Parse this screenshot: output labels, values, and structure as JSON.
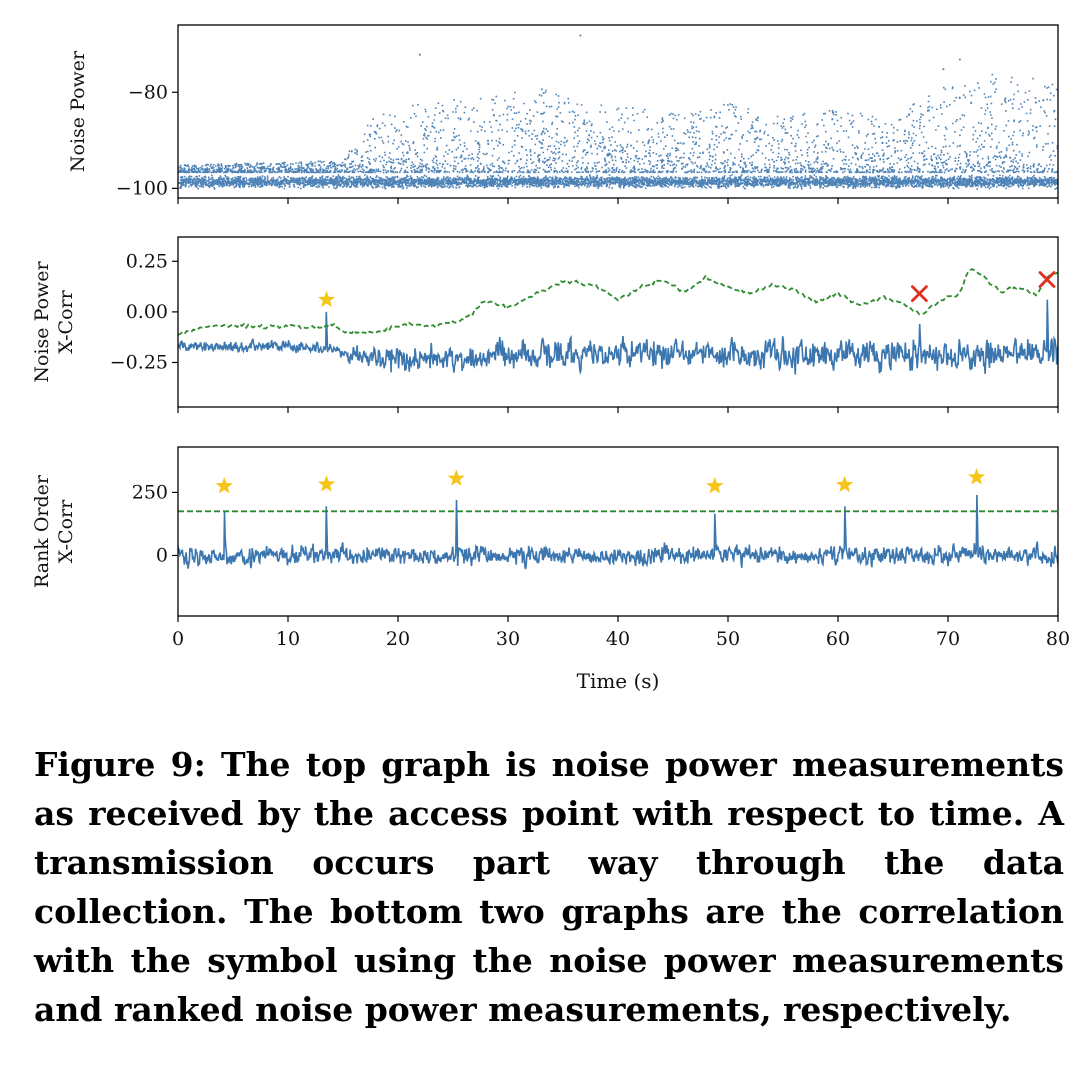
{
  "caption": "Figure 9: The top graph is noise power measurements as received by the access point with respect to time. A transmission occurs part way through the data collection. The bottom two graphs are the correlation with the symbol using the noise power measurements and ranked noise power measurements, respectively.",
  "colors": {
    "primary": "#3b76af",
    "threshold": "#2e8b2e",
    "hit": "#f5c518",
    "miss": "#e03020"
  },
  "chart_data": [
    {
      "type": "scatter",
      "ylabel": "Noise Power",
      "xlim": [
        0,
        80
      ],
      "ylim": [
        -102,
        -66
      ],
      "yticks": [
        -100,
        -80
      ],
      "yticklabels": [
        "−100",
        "−80"
      ],
      "series": [
        {
          "kind": "noise_scatter",
          "baseline": -98.5,
          "envelope": [
            {
              "x": 0,
              "y": -95
            },
            {
              "x": 15,
              "y": -94
            },
            {
              "x": 17,
              "y": -86
            },
            {
              "x": 20,
              "y": -83
            },
            {
              "x": 22,
              "y": -82
            },
            {
              "x": 27,
              "y": -81
            },
            {
              "x": 33,
              "y": -79
            },
            {
              "x": 37,
              "y": -82
            },
            {
              "x": 42,
              "y": -83
            },
            {
              "x": 47,
              "y": -84
            },
            {
              "x": 50,
              "y": -82
            },
            {
              "x": 55,
              "y": -85
            },
            {
              "x": 60,
              "y": -83
            },
            {
              "x": 65,
              "y": -86
            },
            {
              "x": 67,
              "y": -80
            },
            {
              "x": 70,
              "y": -78
            },
            {
              "x": 74,
              "y": -76
            },
            {
              "x": 78,
              "y": -77
            },
            {
              "x": 80,
              "y": -78
            }
          ],
          "outliers": [
            {
              "x": 36.5,
              "y": -68
            },
            {
              "x": 21.9,
              "y": -72
            },
            {
              "x": 71.0,
              "y": -73
            },
            {
              "x": 69.5,
              "y": -75
            }
          ]
        }
      ]
    },
    {
      "type": "line",
      "ylabel": [
        "Noise Power",
        "X-Corr"
      ],
      "xlim": [
        0,
        80
      ],
      "ylim": [
        -0.47,
        0.37
      ],
      "yticks": [
        -0.25,
        0.0,
        0.25
      ],
      "yticklabels": [
        "−0.25",
        "0.00",
        "0.25"
      ],
      "series": [
        {
          "kind": "noisy_line",
          "trend": [
            {
              "x": 0,
              "y": -0.17
            },
            {
              "x": 13,
              "y": -0.17
            },
            {
              "x": 15,
              "y": -0.2
            },
            {
              "x": 20,
              "y": -0.24
            },
            {
              "x": 30,
              "y": -0.22
            },
            {
              "x": 40,
              "y": -0.2
            },
            {
              "x": 50,
              "y": -0.2
            },
            {
              "x": 60,
              "y": -0.21
            },
            {
              "x": 70,
              "y": -0.22
            },
            {
              "x": 80,
              "y": -0.2
            }
          ],
          "amplitude": [
            {
              "x": 0,
              "y": 0.03
            },
            {
              "x": 15,
              "y": 0.04
            },
            {
              "x": 20,
              "y": 0.08
            },
            {
              "x": 80,
              "y": 0.09
            }
          ],
          "spikes": [
            {
              "x": 13.5,
              "y": 0.0
            },
            {
              "x": 67.4,
              "y": -0.06
            },
            {
              "x": 79.0,
              "y": 0.06
            }
          ]
        },
        {
          "kind": "dashed_threshold",
          "points": [
            {
              "x": 0,
              "y": -0.11
            },
            {
              "x": 1.5,
              "y": -0.09
            },
            {
              "x": 3,
              "y": -0.07
            },
            {
              "x": 6,
              "y": -0.07
            },
            {
              "x": 10,
              "y": -0.07
            },
            {
              "x": 13,
              "y": -0.08
            },
            {
              "x": 14,
              "y": -0.06
            },
            {
              "x": 15,
              "y": -0.1
            },
            {
              "x": 18,
              "y": -0.1
            },
            {
              "x": 21,
              "y": -0.06
            },
            {
              "x": 23,
              "y": -0.07
            },
            {
              "x": 26,
              "y": -0.04
            },
            {
              "x": 28,
              "y": 0.06
            },
            {
              "x": 30,
              "y": 0.02
            },
            {
              "x": 33,
              "y": 0.1
            },
            {
              "x": 35,
              "y": 0.15
            },
            {
              "x": 38,
              "y": 0.13
            },
            {
              "x": 40,
              "y": 0.06
            },
            {
              "x": 42,
              "y": 0.12
            },
            {
              "x": 44,
              "y": 0.16
            },
            {
              "x": 46,
              "y": 0.1
            },
            {
              "x": 48,
              "y": 0.17
            },
            {
              "x": 50,
              "y": 0.12
            },
            {
              "x": 52,
              "y": 0.09
            },
            {
              "x": 54,
              "y": 0.13
            },
            {
              "x": 56,
              "y": 0.11
            },
            {
              "x": 58,
              "y": 0.05
            },
            {
              "x": 60,
              "y": 0.09
            },
            {
              "x": 62,
              "y": 0.03
            },
            {
              "x": 64,
              "y": 0.07
            },
            {
              "x": 66,
              "y": 0.04
            },
            {
              "x": 67.5,
              "y": -0.01
            },
            {
              "x": 69,
              "y": 0.04
            },
            {
              "x": 70,
              "y": 0.08
            },
            {
              "x": 71,
              "y": 0.09
            },
            {
              "x": 72,
              "y": 0.21
            },
            {
              "x": 73,
              "y": 0.19
            },
            {
              "x": 74,
              "y": 0.13
            },
            {
              "x": 75,
              "y": 0.1
            },
            {
              "x": 76,
              "y": 0.12
            },
            {
              "x": 77,
              "y": 0.11
            },
            {
              "x": 78,
              "y": 0.08
            },
            {
              "x": 79,
              "y": 0.17
            },
            {
              "x": 80,
              "y": 0.2
            }
          ]
        }
      ],
      "markers": [
        {
          "shape": "star",
          "x": 13.5,
          "y": 0.06
        },
        {
          "shape": "x",
          "x": 67.4,
          "y": 0.09
        },
        {
          "shape": "x",
          "x": 79.0,
          "y": 0.16
        }
      ]
    },
    {
      "type": "line",
      "ylabel": [
        "Rank Order",
        "X-Corr"
      ],
      "xlabel": "Time (s)",
      "xlim": [
        0,
        80
      ],
      "ylim": [
        -240,
        430
      ],
      "yticks": [
        0,
        250
      ],
      "yticklabels": [
        "0",
        "250"
      ],
      "xticks": [
        0,
        10,
        20,
        30,
        40,
        50,
        60,
        70,
        80
      ],
      "xticklabels": [
        "0",
        "10",
        "20",
        "30",
        "40",
        "50",
        "60",
        "70",
        "80"
      ],
      "threshold": 175,
      "series": [
        {
          "kind": "noisy_line",
          "trend": [
            {
              "x": 0,
              "y": 0
            },
            {
              "x": 80,
              "y": 0
            }
          ],
          "amplitude": [
            {
              "x": 0,
              "y": 45
            },
            {
              "x": 80,
              "y": 45
            }
          ],
          "spikes": [
            {
              "x": 4.2,
              "y": 175
            },
            {
              "x": 13.5,
              "y": 195
            },
            {
              "x": 25.3,
              "y": 220
            },
            {
              "x": 48.8,
              "y": 165
            },
            {
              "x": 60.6,
              "y": 195
            },
            {
              "x": 72.6,
              "y": 240
            }
          ]
        }
      ],
      "markers": [
        {
          "shape": "star",
          "x": 4.2,
          "y": 275
        },
        {
          "shape": "star",
          "x": 13.5,
          "y": 282
        },
        {
          "shape": "star",
          "x": 25.3,
          "y": 305
        },
        {
          "shape": "star",
          "x": 48.8,
          "y": 275
        },
        {
          "shape": "star",
          "x": 60.6,
          "y": 280
        },
        {
          "shape": "star",
          "x": 72.6,
          "y": 310
        }
      ]
    }
  ]
}
